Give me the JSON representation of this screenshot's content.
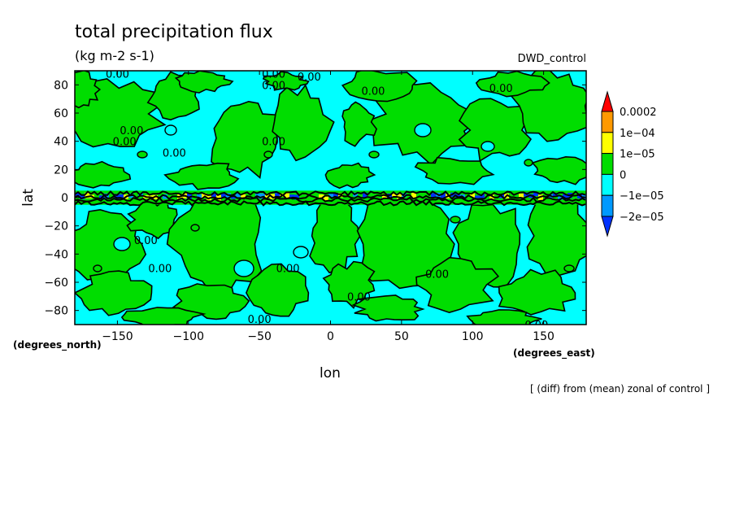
{
  "chart_data": {
    "type": "heatmap",
    "title": "total precipitation flux",
    "units": "(kg m-2 s-1)",
    "model_label": "DWD_control",
    "xlabel": "lon",
    "ylabel": "lat",
    "x_units": "(degrees_east)",
    "y_units": "(degrees_north)",
    "footnote": "[ (diff) from (mean) zonal of control ]",
    "xlim": [
      -180,
      180
    ],
    "ylim": [
      -90,
      90
    ],
    "x_ticks": [
      -150,
      -100,
      -50,
      0,
      50,
      100,
      150
    ],
    "y_ticks": [
      -80,
      -60,
      -40,
      -20,
      0,
      20,
      40,
      60,
      80
    ],
    "contour_label": "0.00",
    "colorbar": {
      "levels": [
        "0.0002",
        "1e-04",
        "1e-05",
        "0",
        "-1e-05",
        "-2e-05"
      ],
      "colors": [
        "#ff0000",
        "#ff9900",
        "#ffff00",
        "#00dd00",
        "#00ffff",
        "#0099ff",
        "#0033ff"
      ]
    },
    "bands": [
      {
        "lat_min": 60,
        "lat_max": 90,
        "sign": "mixed"
      },
      {
        "lat_min": 5,
        "lat_max": 60,
        "sign": "mixed"
      },
      {
        "lat_min": -5,
        "lat_max": 5,
        "sign": "strong"
      },
      {
        "lat_min": -90,
        "lat_max": -5,
        "sign": "mixed"
      }
    ]
  }
}
